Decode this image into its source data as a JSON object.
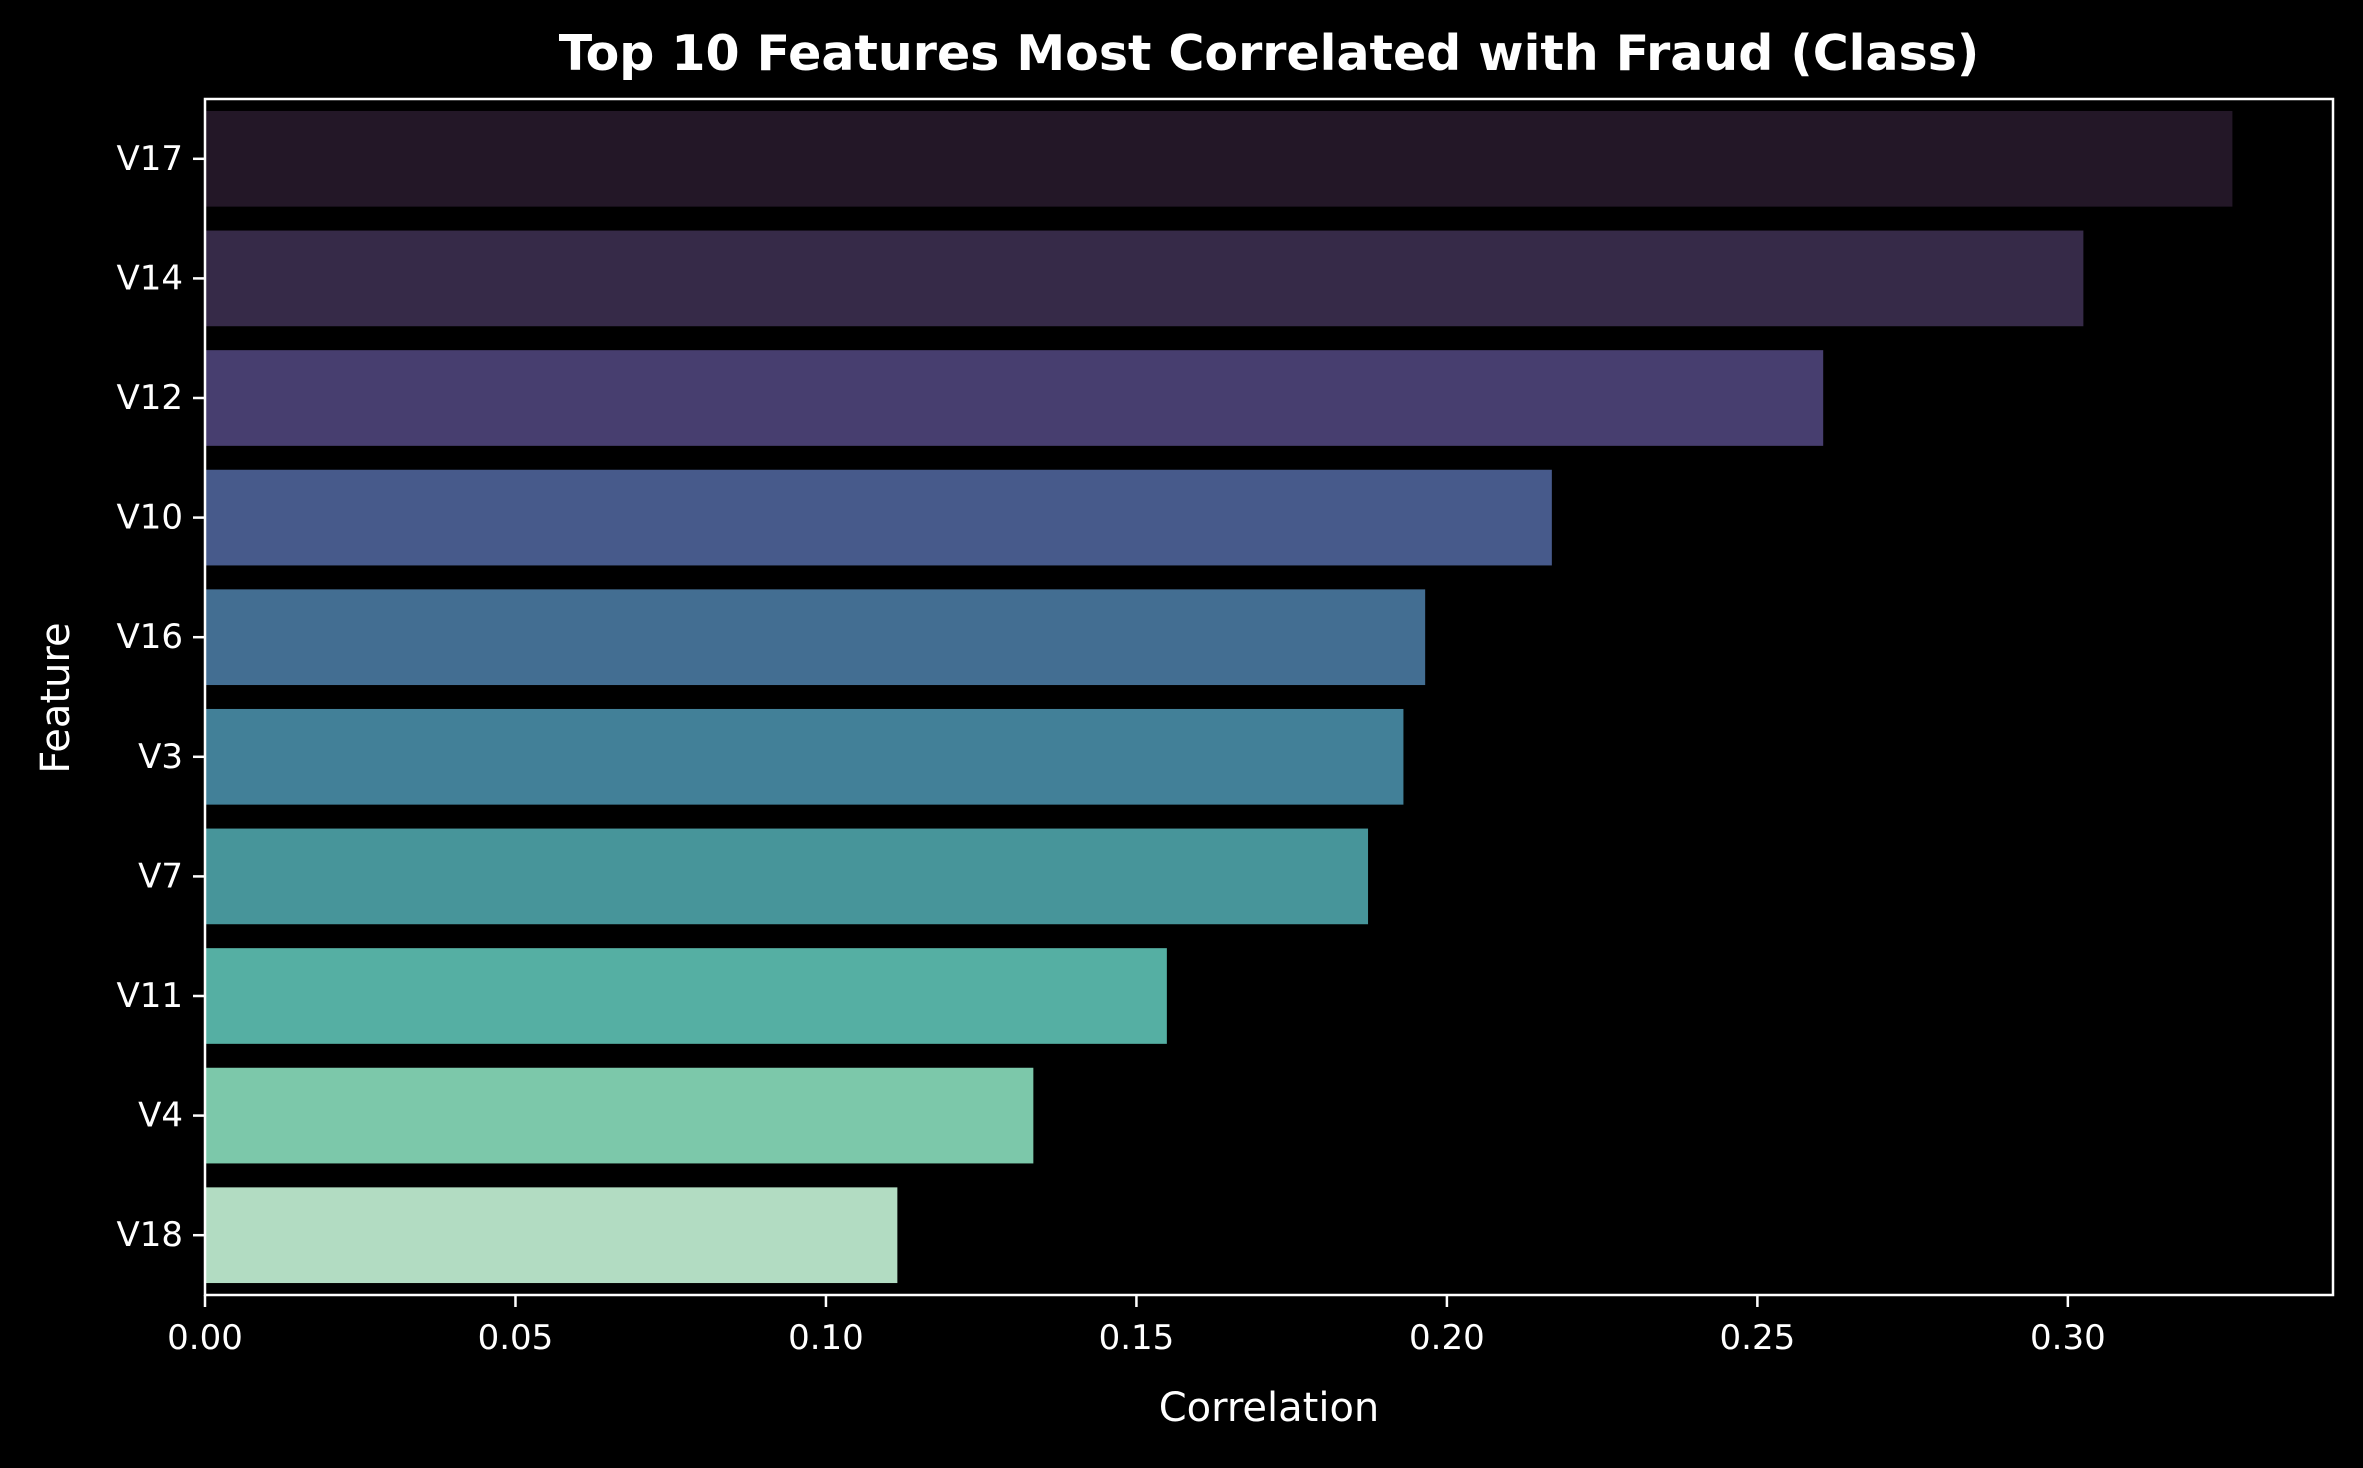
{
  "chart_data": {
    "type": "bar",
    "orientation": "horizontal",
    "title": "Top 10 Features Most Correlated with Fraud (Class)",
    "xlabel": "Correlation",
    "ylabel": "Feature",
    "xlim": [
      0,
      0.3427
    ],
    "xticks": [
      0.0,
      0.05,
      0.1,
      0.15,
      0.2,
      0.25,
      0.3
    ],
    "xtick_labels": [
      "0.00",
      "0.05",
      "0.10",
      "0.15",
      "0.20",
      "0.25",
      "0.30"
    ],
    "grid": false,
    "legend": "none",
    "categories": [
      "V17",
      "V14",
      "V12",
      "V10",
      "V16",
      "V3",
      "V7",
      "V11",
      "V4",
      "V18"
    ],
    "values": [
      0.3265,
      0.3025,
      0.2606,
      0.2169,
      0.1965,
      0.193,
      0.1873,
      0.1549,
      0.1334,
      0.1115
    ],
    "colors": [
      "#231727",
      "#362a48",
      "#473e6f",
      "#475a8b",
      "#436e92",
      "#428098",
      "#47959a",
      "#55afa3",
      "#7cc8aa",
      "#b2dcc2"
    ],
    "background": "#000000",
    "axis_color": "#ffffff",
    "text_color": "#ffffff"
  }
}
